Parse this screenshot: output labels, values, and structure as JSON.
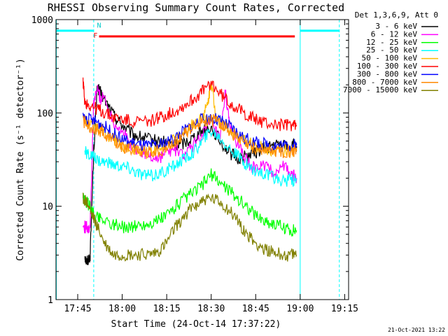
{
  "chart_data": {
    "type": "line",
    "title": "RHESSI Observing Summary Count Rates, Corrected",
    "xlabel": "Start Time (24-Oct-14 17:37:22)",
    "ylabel": "Corrected Count Rate (s⁻¹ detector⁻¹)",
    "ylog": true,
    "ylim": [
      1,
      1000
    ],
    "xlim_minutes": [
      17.628,
      19.272
    ],
    "x_ticks": [
      {
        "label": "17:45",
        "m": 17.75
      },
      {
        "label": "18:00",
        "m": 18.0
      },
      {
        "label": "18:15",
        "m": 18.25
      },
      {
        "label": "18:30",
        "m": 18.5
      },
      {
        "label": "18:45",
        "m": 18.75
      },
      {
        "label": "19:00",
        "m": 19.0
      },
      {
        "label": "19:15",
        "m": 19.25
      }
    ],
    "y_ticks": [
      {
        "label": "1",
        "v": 1
      },
      {
        "label": "10",
        "v": 10
      },
      {
        "label": "100",
        "v": 100
      },
      {
        "label": "1000",
        "v": 1000
      }
    ],
    "legend_header": "Det 1,3,6,9, Att 0",
    "legend_position": "right",
    "series": [
      {
        "name": "3 - 6 keV",
        "color": "#000000",
        "points": [
          [
            17.79,
            3
          ],
          [
            17.8,
            2.5
          ],
          [
            17.82,
            3
          ],
          [
            17.84,
            40
          ],
          [
            17.86,
            190
          ],
          [
            17.88,
            160
          ],
          [
            17.92,
            120
          ],
          [
            17.96,
            90
          ],
          [
            18.0,
            75
          ],
          [
            18.05,
            60
          ],
          [
            18.1,
            55
          ],
          [
            18.15,
            52
          ],
          [
            18.2,
            50
          ],
          [
            18.25,
            48
          ],
          [
            18.3,
            45
          ],
          [
            18.35,
            48
          ],
          [
            18.4,
            55
          ],
          [
            18.45,
            65
          ],
          [
            18.5,
            70
          ],
          [
            18.55,
            50
          ],
          [
            18.6,
            38
          ],
          [
            18.65,
            32
          ],
          [
            18.7,
            35
          ],
          [
            18.75,
            38
          ],
          [
            18.8,
            42
          ],
          [
            18.85,
            45
          ],
          [
            18.9,
            45
          ],
          [
            18.95,
            45
          ],
          [
            18.98,
            44
          ]
        ]
      },
      {
        "name": "6 - 12 keV",
        "color": "#ff00ff",
        "points": [
          [
            17.78,
            6
          ],
          [
            17.8,
            6
          ],
          [
            17.82,
            6
          ],
          [
            17.84,
            130
          ],
          [
            17.86,
            180
          ],
          [
            17.88,
            140
          ],
          [
            17.9,
            150
          ],
          [
            17.95,
            80
          ],
          [
            18.0,
            65
          ],
          [
            18.05,
            45
          ],
          [
            18.1,
            40
          ],
          [
            18.15,
            35
          ],
          [
            18.2,
            32
          ],
          [
            18.25,
            38
          ],
          [
            18.3,
            40
          ],
          [
            18.35,
            35
          ],
          [
            18.4,
            45
          ],
          [
            18.45,
            60
          ],
          [
            18.5,
            80
          ],
          [
            18.55,
            50
          ],
          [
            18.58,
            170
          ],
          [
            18.6,
            80
          ],
          [
            18.65,
            45
          ],
          [
            18.7,
            30
          ],
          [
            18.75,
            25
          ],
          [
            18.8,
            28
          ],
          [
            18.85,
            22
          ],
          [
            18.9,
            28
          ],
          [
            18.95,
            22
          ],
          [
            18.98,
            20
          ]
        ]
      },
      {
        "name": "12 - 25 keV",
        "color": "#00ff00",
        "points": [
          [
            17.78,
            12
          ],
          [
            17.8,
            11
          ],
          [
            17.82,
            10
          ],
          [
            17.84,
            8
          ],
          [
            17.88,
            7.5
          ],
          [
            17.95,
            6.5
          ],
          [
            18.0,
            6
          ],
          [
            18.05,
            6
          ],
          [
            18.1,
            6.2
          ],
          [
            18.15,
            6.5
          ],
          [
            18.2,
            7
          ],
          [
            18.25,
            8
          ],
          [
            18.3,
            10
          ],
          [
            18.35,
            12
          ],
          [
            18.4,
            14
          ],
          [
            18.45,
            17
          ],
          [
            18.5,
            22
          ],
          [
            18.55,
            18
          ],
          [
            18.6,
            15
          ],
          [
            18.65,
            12
          ],
          [
            18.7,
            10
          ],
          [
            18.75,
            8
          ],
          [
            18.8,
            7
          ],
          [
            18.85,
            6.5
          ],
          [
            18.9,
            6
          ],
          [
            18.95,
            5.5
          ],
          [
            18.98,
            5.5
          ]
        ]
      },
      {
        "name": "25 - 50 keV",
        "color": "#00ffff",
        "points": [
          [
            17.79,
            38
          ],
          [
            17.82,
            35
          ],
          [
            17.85,
            32
          ],
          [
            17.9,
            30
          ],
          [
            17.95,
            28
          ],
          [
            18.0,
            27
          ],
          [
            18.05,
            25
          ],
          [
            18.1,
            22
          ],
          [
            18.15,
            21
          ],
          [
            18.2,
            22
          ],
          [
            18.25,
            24
          ],
          [
            18.3,
            28
          ],
          [
            18.35,
            32
          ],
          [
            18.4,
            38
          ],
          [
            18.45,
            50
          ],
          [
            18.5,
            65
          ],
          [
            18.55,
            55
          ],
          [
            18.6,
            42
          ],
          [
            18.65,
            34
          ],
          [
            18.7,
            28
          ],
          [
            18.75,
            24
          ],
          [
            18.8,
            22
          ],
          [
            18.85,
            20
          ],
          [
            18.9,
            19
          ],
          [
            18.95,
            19
          ],
          [
            18.98,
            19
          ]
        ]
      },
      {
        "name": "50 - 100 keV",
        "color": "#ffbb00",
        "points": [
          [
            17.78,
            85
          ],
          [
            17.82,
            75
          ],
          [
            17.86,
            70
          ],
          [
            17.9,
            62
          ],
          [
            17.95,
            52
          ],
          [
            18.0,
            45
          ],
          [
            18.05,
            42
          ],
          [
            18.1,
            40
          ],
          [
            18.15,
            39
          ],
          [
            18.2,
            40
          ],
          [
            18.25,
            44
          ],
          [
            18.3,
            52
          ],
          [
            18.35,
            62
          ],
          [
            18.4,
            75
          ],
          [
            18.45,
            90
          ],
          [
            18.48,
            120
          ],
          [
            18.5,
            220
          ],
          [
            18.52,
            110
          ],
          [
            18.55,
            80
          ],
          [
            18.6,
            65
          ],
          [
            18.65,
            55
          ],
          [
            18.7,
            48
          ],
          [
            18.75,
            44
          ],
          [
            18.8,
            42
          ],
          [
            18.85,
            40
          ],
          [
            18.9,
            40
          ],
          [
            18.95,
            40
          ],
          [
            18.98,
            40
          ]
        ]
      },
      {
        "name": "100 - 300 keV",
        "color": "#ff0000",
        "points": [
          [
            17.78,
            220
          ],
          [
            17.79,
            130
          ],
          [
            17.82,
            120
          ],
          [
            17.86,
            110
          ],
          [
            17.9,
            100
          ],
          [
            17.95,
            90
          ],
          [
            18.0,
            85
          ],
          [
            18.05,
            82
          ],
          [
            18.1,
            80
          ],
          [
            18.15,
            82
          ],
          [
            18.2,
            88
          ],
          [
            18.25,
            95
          ],
          [
            18.3,
            105
          ],
          [
            18.35,
            120
          ],
          [
            18.4,
            140
          ],
          [
            18.45,
            170
          ],
          [
            18.5,
            210
          ],
          [
            18.55,
            160
          ],
          [
            18.6,
            130
          ],
          [
            18.65,
            110
          ],
          [
            18.7,
            95
          ],
          [
            18.75,
            85
          ],
          [
            18.8,
            78
          ],
          [
            18.85,
            75
          ],
          [
            18.9,
            74
          ],
          [
            18.95,
            74
          ],
          [
            18.98,
            74
          ]
        ]
      },
      {
        "name": "300 - 800 keV",
        "color": "#0000ff",
        "points": [
          [
            17.78,
            90
          ],
          [
            17.82,
            85
          ],
          [
            17.86,
            80
          ],
          [
            17.9,
            72
          ],
          [
            17.95,
            60
          ],
          [
            18.0,
            52
          ],
          [
            18.05,
            48
          ],
          [
            18.1,
            45
          ],
          [
            18.15,
            44
          ],
          [
            18.2,
            45
          ],
          [
            18.25,
            48
          ],
          [
            18.3,
            55
          ],
          [
            18.35,
            65
          ],
          [
            18.4,
            75
          ],
          [
            18.45,
            85
          ],
          [
            18.5,
            88
          ],
          [
            18.55,
            82
          ],
          [
            18.6,
            72
          ],
          [
            18.65,
            60
          ],
          [
            18.7,
            52
          ],
          [
            18.75,
            48
          ],
          [
            18.8,
            46
          ],
          [
            18.85,
            45
          ],
          [
            18.9,
            45
          ],
          [
            18.95,
            45
          ],
          [
            18.98,
            45
          ]
        ]
      },
      {
        "name": "800 - 7000 keV",
        "color": "#ff8800",
        "points": [
          [
            17.78,
            82
          ],
          [
            17.82,
            72
          ],
          [
            17.86,
            68
          ],
          [
            17.9,
            60
          ],
          [
            17.95,
            50
          ],
          [
            18.0,
            44
          ],
          [
            18.05,
            41
          ],
          [
            18.1,
            39
          ],
          [
            18.15,
            38
          ],
          [
            18.2,
            39
          ],
          [
            18.25,
            42
          ],
          [
            18.3,
            50
          ],
          [
            18.35,
            60
          ],
          [
            18.4,
            72
          ],
          [
            18.45,
            82
          ],
          [
            18.5,
            85
          ],
          [
            18.55,
            78
          ],
          [
            18.6,
            65
          ],
          [
            18.65,
            52
          ],
          [
            18.7,
            45
          ],
          [
            18.75,
            41
          ],
          [
            18.8,
            40
          ],
          [
            18.85,
            39
          ],
          [
            18.9,
            39
          ],
          [
            18.95,
            39
          ],
          [
            18.98,
            39
          ]
        ]
      },
      {
        "name": "7000 - 15000 keV",
        "color": "#808000",
        "points": [
          [
            17.78,
            12
          ],
          [
            17.8,
            11
          ],
          [
            17.83,
            8
          ],
          [
            17.86,
            6
          ],
          [
            17.9,
            4
          ],
          [
            17.95,
            3
          ],
          [
            18.0,
            3
          ],
          [
            18.05,
            3
          ],
          [
            18.1,
            3
          ],
          [
            18.15,
            3
          ],
          [
            18.2,
            3.2
          ],
          [
            18.25,
            4
          ],
          [
            18.3,
            6
          ],
          [
            18.35,
            8
          ],
          [
            18.4,
            10
          ],
          [
            18.45,
            11.5
          ],
          [
            18.5,
            12
          ],
          [
            18.55,
            11
          ],
          [
            18.6,
            9
          ],
          [
            18.65,
            7
          ],
          [
            18.7,
            5
          ],
          [
            18.75,
            4
          ],
          [
            18.8,
            3.5
          ],
          [
            18.85,
            3.2
          ],
          [
            18.9,
            3
          ],
          [
            18.95,
            3
          ],
          [
            18.98,
            3
          ]
        ]
      }
    ],
    "annotations": [
      {
        "text": "F",
        "color": "#ff0000",
        "m": 17.85,
        "v": 640
      },
      {
        "text": "N",
        "color": "#00c8c8",
        "m": 17.87,
        "v": 820
      }
    ],
    "flare_flag": {
      "color": "#ff0000",
      "m_start": 17.87,
      "m_end": 18.97,
      "v": 660
    },
    "night_flags": [
      {
        "color": "#00ffff",
        "m_start": 17.63,
        "m_end": 17.84,
        "v": 760
      },
      {
        "color": "#00ffff",
        "m_start": 19.0,
        "m_end": 19.22,
        "v": 760
      }
    ],
    "timestamp": "21-Oct-2021 13:22"
  }
}
